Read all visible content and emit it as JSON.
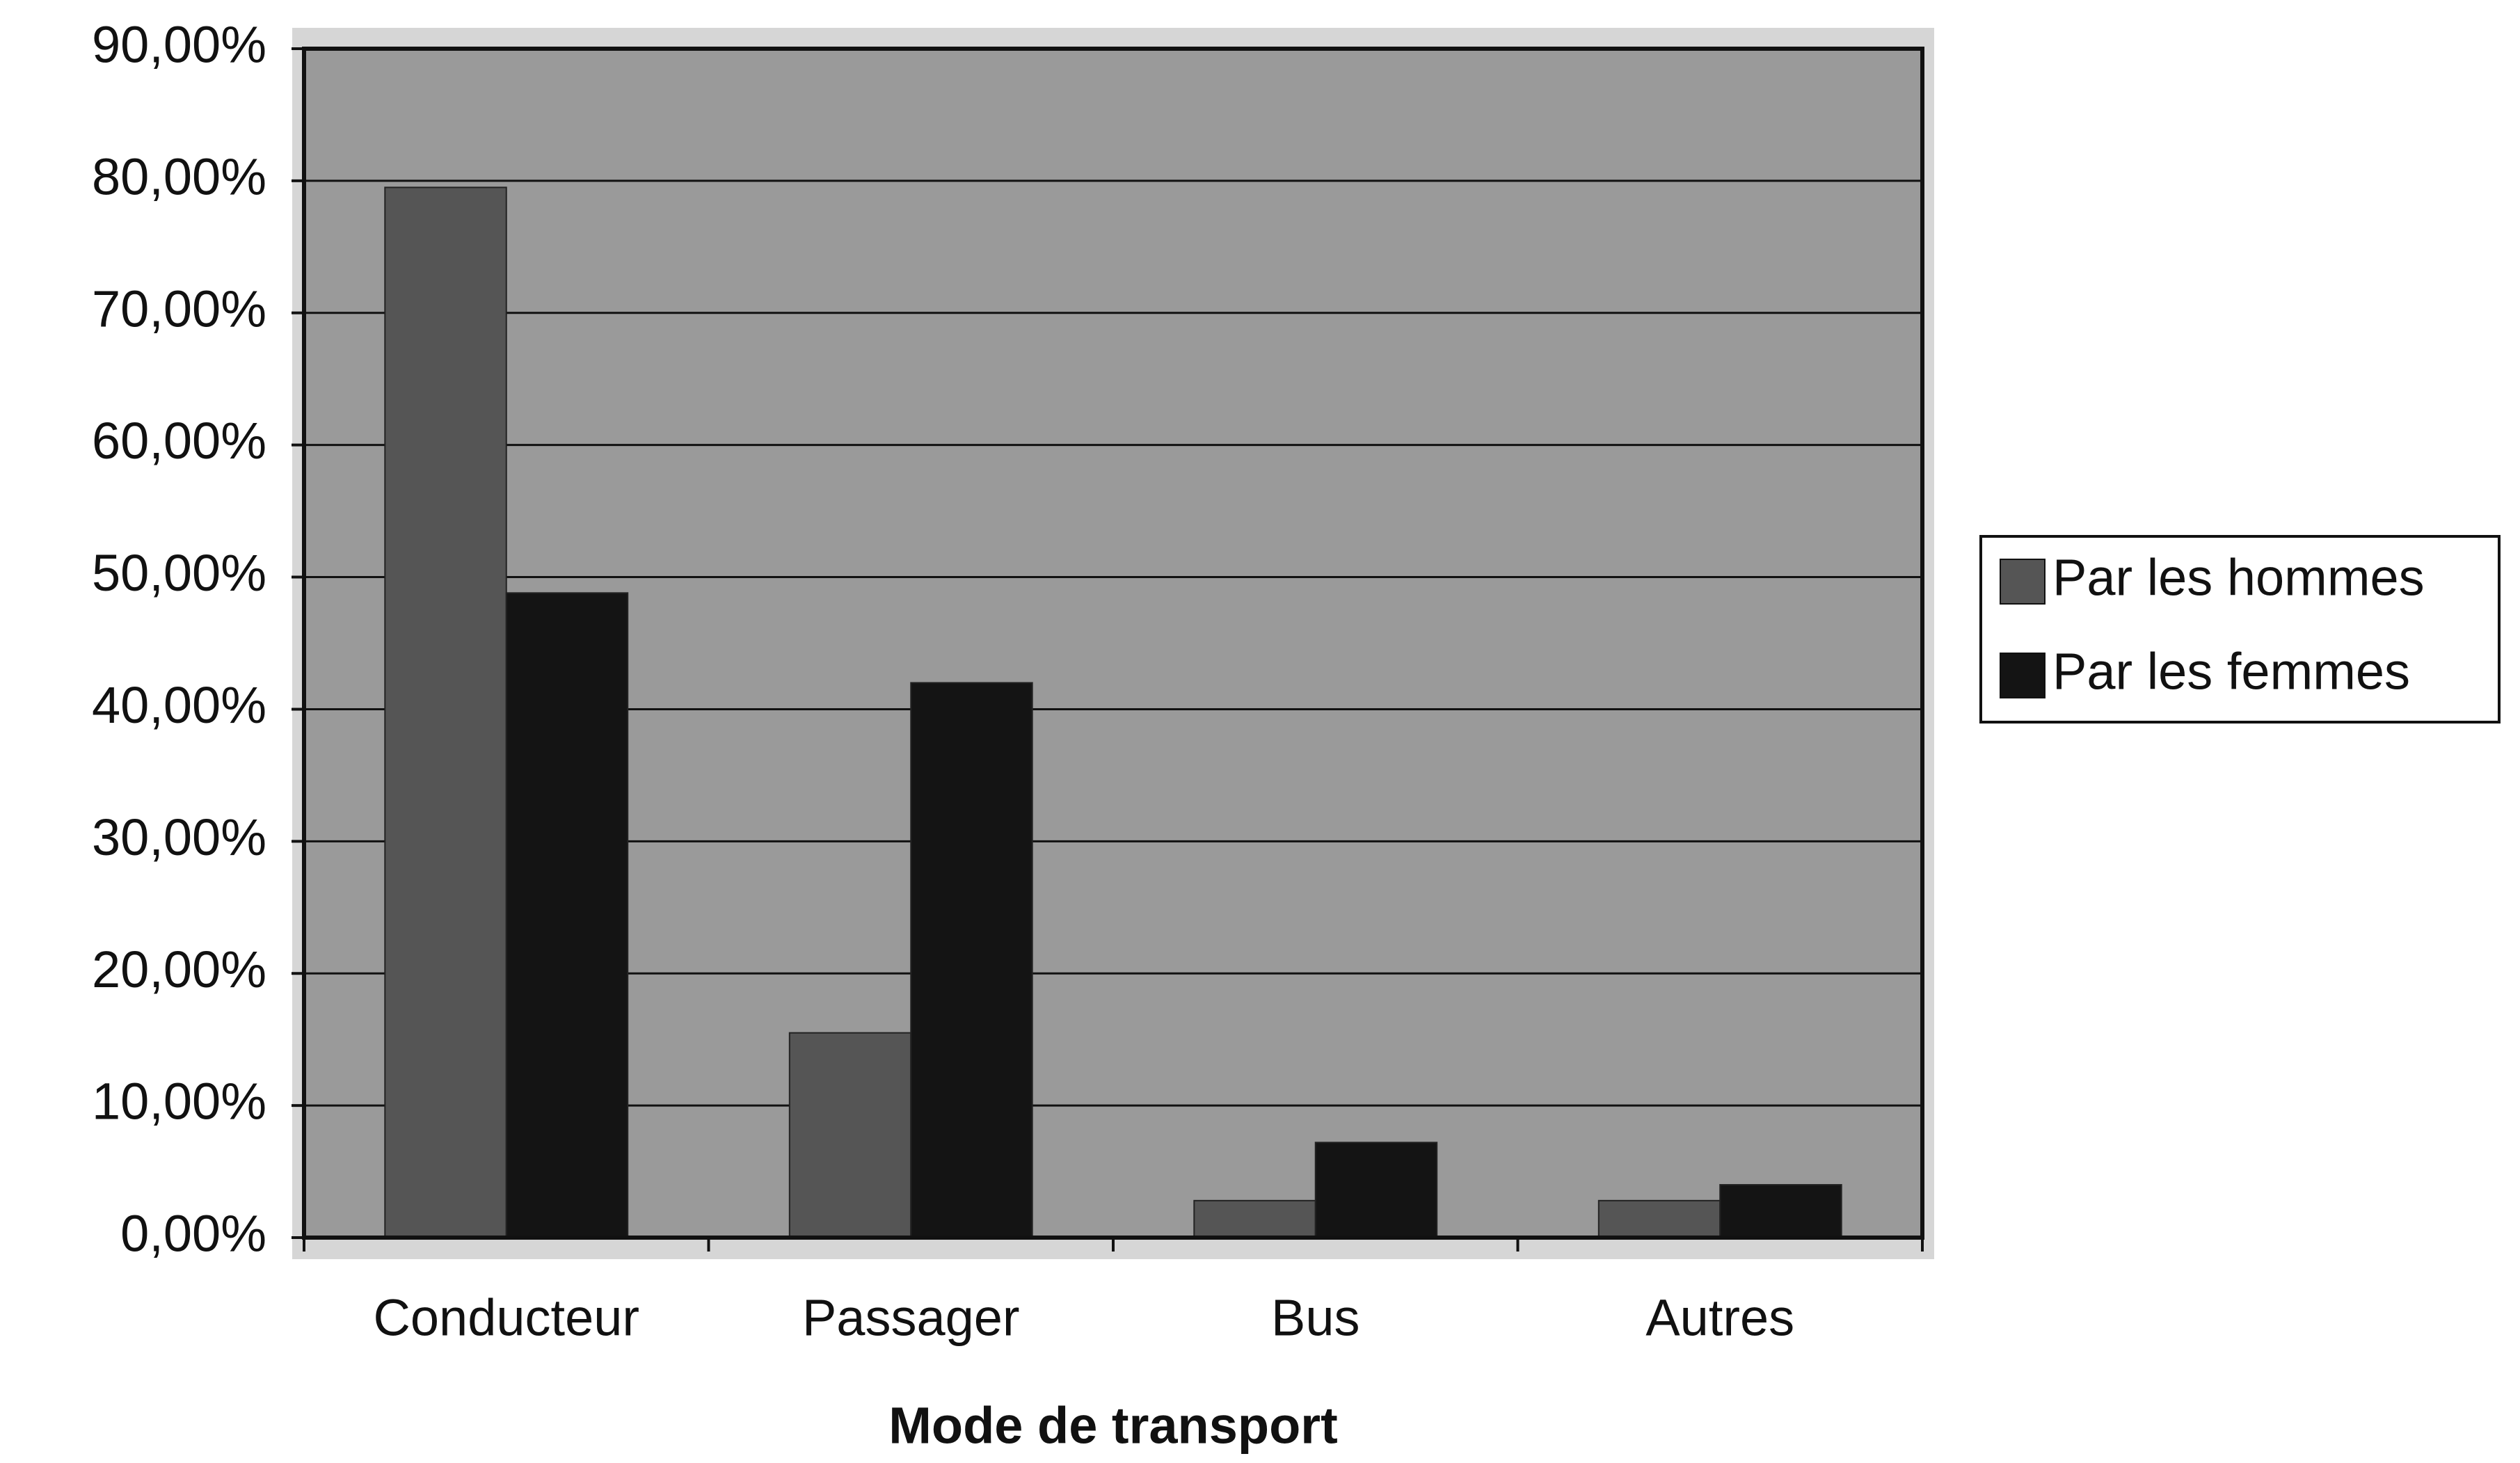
{
  "chart_data": {
    "type": "bar",
    "x_label": "Mode de transport",
    "categories": [
      "Conducteur",
      "Passager",
      "Bus",
      "Autres"
    ],
    "series": [
      {
        "name": "Par les hommes",
        "color": "#555555",
        "values": [
          79.5,
          15.5,
          2.8,
          2.8
        ]
      },
      {
        "name": "Par les femmes",
        "color": "#141414",
        "values": [
          48.8,
          42,
          7.2,
          4
        ]
      }
    ],
    "ylim": [
      0,
      90
    ],
    "yticks": [
      {
        "value": 0,
        "label": "0,00%"
      },
      {
        "value": 10,
        "label": "10,00%"
      },
      {
        "value": 20,
        "label": "20,00%"
      },
      {
        "value": 30,
        "label": "30,00%"
      },
      {
        "value": 40,
        "label": "40,00%"
      },
      {
        "value": 50,
        "label": "50,00%"
      },
      {
        "value": 60,
        "label": "60,00%"
      },
      {
        "value": 70,
        "label": "70,00%"
      },
      {
        "value": 80,
        "label": "80,00%"
      },
      {
        "value": 90,
        "label": "90,00%"
      }
    ],
    "grid": true,
    "legend": "right"
  }
}
